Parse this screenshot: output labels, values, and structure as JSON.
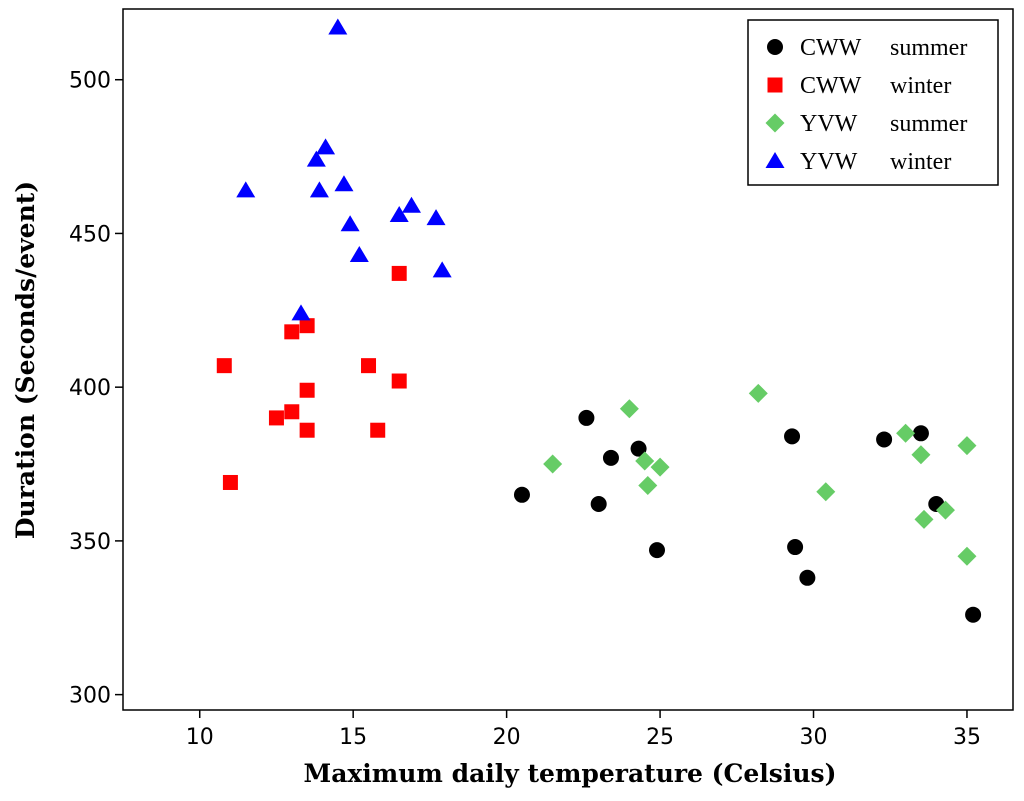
{
  "chart_data": {
    "type": "scatter",
    "title": "",
    "xlabel": "Maximum daily temperature (Celsius)",
    "ylabel": "Duration (Seconds/event)",
    "xlim": [
      7.5,
      36.5
    ],
    "ylim": [
      295,
      523
    ],
    "xticks": [
      10,
      15,
      20,
      25,
      30,
      35
    ],
    "yticks": [
      300,
      350,
      400,
      450,
      500
    ],
    "grid": false,
    "legend_position": "top-right",
    "series": [
      {
        "name": "CWW summer",
        "legend_site": "CWW",
        "legend_season": "summer",
        "marker": "circle",
        "color": "#000000",
        "points": [
          [
            20.5,
            365
          ],
          [
            22.6,
            390
          ],
          [
            23.0,
            362
          ],
          [
            23.4,
            377
          ],
          [
            24.3,
            380
          ],
          [
            24.9,
            347
          ],
          [
            29.3,
            384
          ],
          [
            29.4,
            348
          ],
          [
            29.8,
            338
          ],
          [
            32.3,
            383
          ],
          [
            33.5,
            385
          ],
          [
            34.0,
            362
          ],
          [
            35.2,
            326
          ]
        ]
      },
      {
        "name": "CWW winter",
        "legend_site": "CWW",
        "legend_season": "winter",
        "marker": "square",
        "color": "#ff0000",
        "points": [
          [
            10.8,
            407
          ],
          [
            11.0,
            369
          ],
          [
            12.5,
            390
          ],
          [
            13.0,
            392
          ],
          [
            13.0,
            418
          ],
          [
            13.5,
            420
          ],
          [
            13.5,
            399
          ],
          [
            13.5,
            386
          ],
          [
            15.5,
            407
          ],
          [
            15.8,
            386
          ],
          [
            16.5,
            437
          ],
          [
            16.5,
            402
          ]
        ]
      },
      {
        "name": "YVW summer",
        "legend_site": "YVW",
        "legend_season": "summer",
        "marker": "diamond",
        "color": "#66cc66",
        "points": [
          [
            21.5,
            375
          ],
          [
            24.0,
            393
          ],
          [
            24.5,
            376
          ],
          [
            24.6,
            368
          ],
          [
            25.0,
            374
          ],
          [
            28.2,
            398
          ],
          [
            30.4,
            366
          ],
          [
            33.0,
            385
          ],
          [
            33.5,
            378
          ],
          [
            33.6,
            357
          ],
          [
            34.3,
            360
          ],
          [
            35.0,
            381
          ],
          [
            35.0,
            345
          ]
        ]
      },
      {
        "name": "YVW winter",
        "legend_site": "YVW",
        "legend_season": "winter",
        "marker": "triangle",
        "color": "#0000ff",
        "points": [
          [
            11.5,
            464
          ],
          [
            13.3,
            424
          ],
          [
            13.8,
            474
          ],
          [
            13.9,
            464
          ],
          [
            14.1,
            478
          ],
          [
            14.5,
            517
          ],
          [
            14.7,
            466
          ],
          [
            14.9,
            453
          ],
          [
            15.2,
            443
          ],
          [
            16.5,
            456
          ],
          [
            16.9,
            459
          ],
          [
            17.7,
            455
          ],
          [
            17.9,
            438
          ]
        ]
      }
    ]
  }
}
